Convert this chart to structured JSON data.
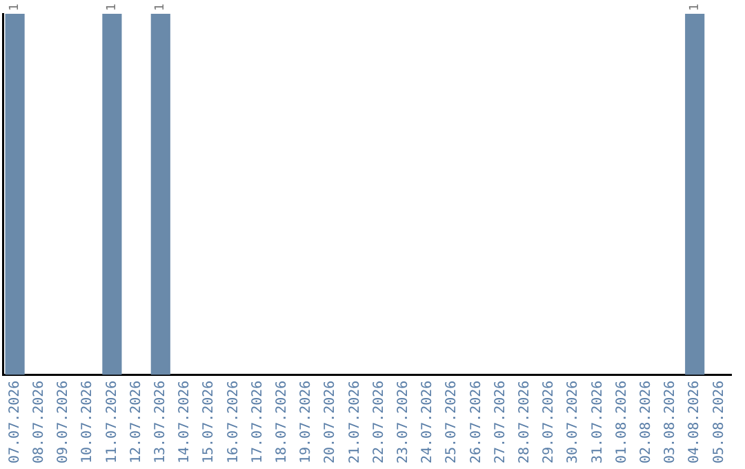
{
  "chart_data": {
    "type": "bar",
    "categories": [
      "07.07.2026",
      "08.07.2026",
      "09.07.2026",
      "10.07.2026",
      "11.07.2026",
      "12.07.2026",
      "13.07.2026",
      "14.07.2026",
      "15.07.2026",
      "16.07.2026",
      "17.07.2026",
      "18.07.2026",
      "19.07.2026",
      "20.07.2026",
      "21.07.2026",
      "22.07.2026",
      "23.07.2026",
      "24.07.2026",
      "25.07.2026",
      "26.07.2026",
      "27.07.2026",
      "28.07.2026",
      "29.07.2026",
      "30.07.2026",
      "31.07.2026",
      "01.08.2026",
      "02.08.2026",
      "03.08.2026",
      "04.08.2026",
      "05.08.2026"
    ],
    "values": [
      1,
      0,
      0,
      0,
      1,
      0,
      1,
      0,
      0,
      0,
      0,
      0,
      0,
      0,
      0,
      0,
      0,
      0,
      0,
      0,
      0,
      0,
      0,
      0,
      0,
      0,
      0,
      0,
      1,
      0
    ],
    "value_labels": [
      "1",
      null,
      null,
      null,
      "1",
      null,
      "1",
      null,
      null,
      null,
      null,
      null,
      null,
      null,
      null,
      null,
      null,
      null,
      null,
      null,
      null,
      null,
      null,
      null,
      null,
      null,
      null,
      null,
      "1",
      null
    ],
    "color": "#6a8aaa",
    "ylim": [
      0,
      1
    ],
    "tick_labels": "x",
    "grid": false,
    "legend": false
  }
}
